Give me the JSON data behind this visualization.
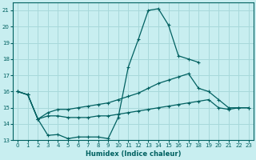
{
  "xlabel": "Humidex (Indice chaleur)",
  "bg_color": "#c8eef0",
  "grid_color": "#a8d8da",
  "line_color": "#006060",
  "xlim": [
    -0.5,
    23.5
  ],
  "ylim": [
    13,
    21.5
  ],
  "xticks": [
    0,
    1,
    2,
    3,
    4,
    5,
    6,
    7,
    8,
    9,
    10,
    11,
    12,
    13,
    14,
    15,
    16,
    17,
    18,
    19,
    20,
    21,
    22,
    23
  ],
  "yticks": [
    13,
    14,
    15,
    16,
    17,
    18,
    19,
    20,
    21
  ],
  "lines": [
    {
      "x": [
        0,
        1,
        2,
        3,
        4,
        5,
        6,
        7,
        8,
        9,
        10,
        11,
        12,
        13,
        14,
        15,
        16,
        17,
        18
      ],
      "y": [
        16.0,
        15.8,
        14.3,
        13.3,
        13.35,
        13.1,
        13.2,
        13.2,
        13.2,
        13.1,
        14.4,
        17.5,
        19.2,
        21.0,
        21.1,
        20.1,
        18.2,
        18.0,
        17.8
      ]
    },
    {
      "x": [
        0,
        1,
        2,
        3,
        4,
        5,
        6,
        7,
        8,
        9,
        10,
        11,
        12,
        13,
        14,
        15,
        16,
        17,
        18,
        19,
        20,
        21,
        22,
        23
      ],
      "y": [
        16.0,
        15.8,
        14.3,
        14.7,
        14.9,
        14.9,
        15.0,
        15.1,
        15.2,
        15.3,
        15.5,
        15.7,
        15.9,
        16.2,
        16.5,
        16.7,
        16.9,
        17.1,
        16.2,
        16.0,
        15.5,
        15.0,
        15.0,
        15.0
      ]
    },
    {
      "x": [
        0,
        1,
        2,
        3,
        4,
        5,
        6,
        7,
        8,
        9,
        10,
        11,
        12,
        13,
        14,
        15,
        16,
        17,
        18,
        19,
        20,
        21,
        22,
        23
      ],
      "y": [
        16.0,
        15.8,
        14.3,
        14.5,
        14.5,
        14.4,
        14.4,
        14.4,
        14.5,
        14.5,
        14.6,
        14.7,
        14.8,
        14.9,
        15.0,
        15.1,
        15.2,
        15.3,
        15.4,
        15.5,
        15.0,
        14.9,
        15.0,
        15.0
      ]
    }
  ]
}
